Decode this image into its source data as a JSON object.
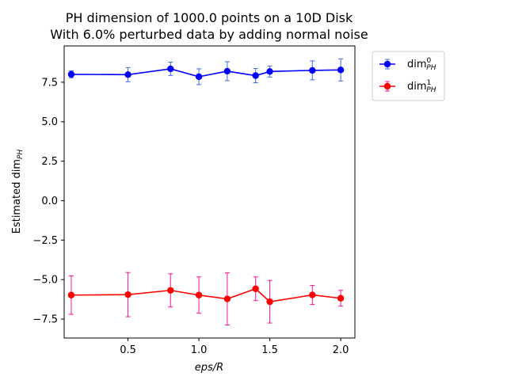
{
  "chart_data": {
    "type": "line",
    "title_line1": "PH dimension of 1000.0 points on a 10D Disk",
    "title_line2": "With 6.0% perturbed data by adding normal noise",
    "xlabel": "eps/R",
    "ylabel_main": "Estimated dim",
    "ylabel_sub": "PH",
    "xlim": [
      0.05,
      2.1
    ],
    "ylim": [
      -8.7,
      9.8
    ],
    "xticks": [
      0.5,
      1.0,
      1.5,
      2.0
    ],
    "xtick_labels": [
      "0.5",
      "1.0",
      "1.5",
      "2.0"
    ],
    "yticks": [
      7.5,
      5.0,
      2.5,
      0.0,
      -2.5,
      -5.0,
      -7.5
    ],
    "ytick_labels": [
      "7.5",
      "5.0",
      "2.5",
      "0.0",
      "−2.5",
      "−5.0",
      "−7.5"
    ],
    "grid": false,
    "legend_position": "outside-top-right",
    "x": [
      0.1,
      0.5,
      0.8,
      1.0,
      1.2,
      1.4,
      1.5,
      1.8,
      2.0
    ],
    "series": [
      {
        "name_main": "dim",
        "name_sup": "0",
        "name_sub": "PH",
        "color": "#0000ff",
        "err_color": "#4169e1",
        "values": [
          8.0,
          7.98,
          8.35,
          7.85,
          8.2,
          7.92,
          8.18,
          8.25,
          8.28
        ],
        "errors": [
          0.22,
          0.45,
          0.42,
          0.5,
          0.6,
          0.45,
          0.35,
          0.6,
          0.7
        ]
      },
      {
        "name_main": "dim",
        "name_sup": "1",
        "name_sub": "PH",
        "color": "#ff0000",
        "err_color": "#ff1493",
        "values": [
          -5.98,
          -5.95,
          -5.68,
          -5.98,
          -6.22,
          -5.58,
          -6.4,
          -5.97,
          -6.18
        ],
        "errors": [
          1.22,
          1.4,
          1.05,
          1.15,
          1.65,
          0.75,
          1.35,
          0.6,
          0.5
        ]
      }
    ]
  }
}
